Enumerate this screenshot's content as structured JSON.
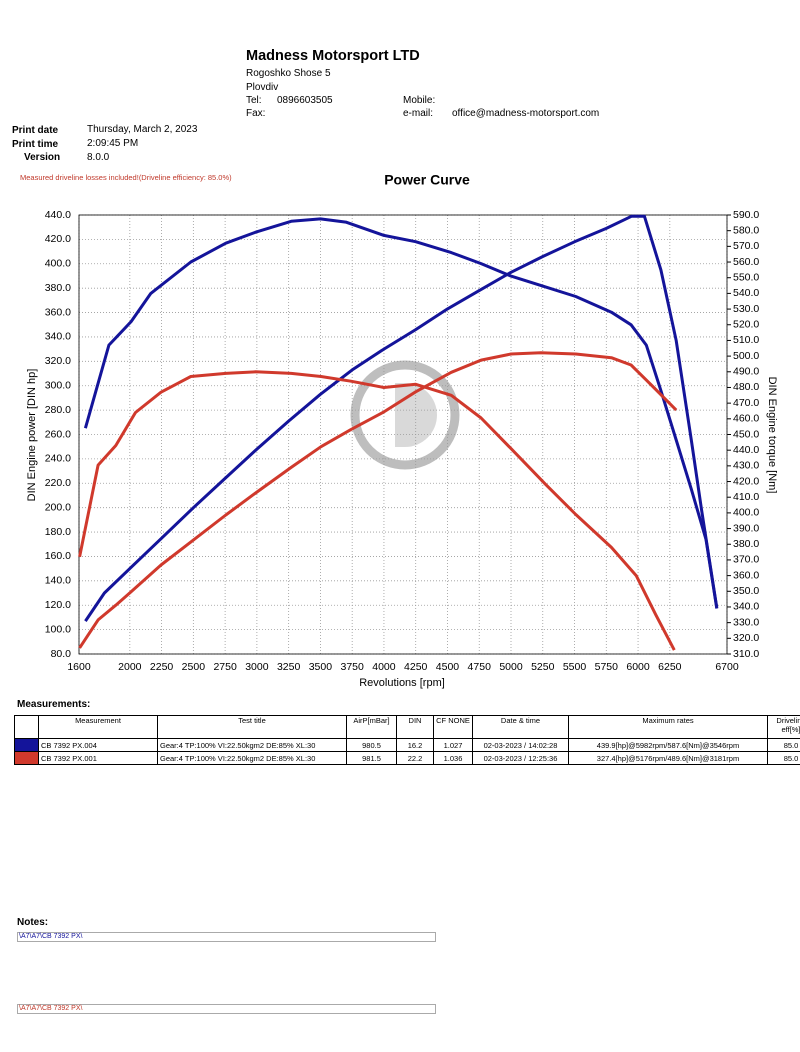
{
  "header": {
    "company": "Madness Motorsport LTD",
    "address": "Rogoshko Shose 5",
    "city": "Plovdiv",
    "tel_label": "Tel:",
    "tel": "0896603505",
    "mobile_label": "Mobile:",
    "fax_label": "Fax:",
    "email_label": "e-mail:",
    "email": "office@madness-motorsport.com"
  },
  "print_info": {
    "date_label": "Print date",
    "date": "Thursday, March 2, 2023",
    "time_label": "Print time",
    "time": "2:09:45 PM",
    "version_label": "Version",
    "version": "8.0.0"
  },
  "note": "Measured driveline losses included!(Driveline efficiency: 85.0%)",
  "chart_data": {
    "type": "line",
    "title": "Power Curve",
    "x_label": "Revolutions [rpm]",
    "y_label": "DIN Engine power [DIN hp]",
    "y2_label": "DIN Engine torque [Nm]",
    "grid": true,
    "xlim": [
      1600,
      6700
    ],
    "xticks": [
      1600,
      2000,
      2250,
      2500,
      2750,
      3000,
      3250,
      3500,
      3750,
      4000,
      4250,
      4500,
      4750,
      5000,
      5250,
      5500,
      5750,
      6000,
      6250,
      6700
    ],
    "ylim": [
      80,
      440
    ],
    "yticks": [
      {
        "value": 80,
        "label": "80.0"
      },
      {
        "value": 100,
        "label": "100.0"
      },
      {
        "value": 120,
        "label": "120.0"
      },
      {
        "value": 140,
        "label": "140.0"
      },
      {
        "value": 160,
        "label": "160.0"
      },
      {
        "value": 180,
        "label": "180.0"
      },
      {
        "value": 200,
        "label": "200.0"
      },
      {
        "value": 220,
        "label": "220.0"
      },
      {
        "value": 240,
        "label": "240.0"
      },
      {
        "value": 260,
        "label": "260.0"
      },
      {
        "value": 280,
        "label": "280.0"
      },
      {
        "value": 300,
        "label": "300.0"
      },
      {
        "value": 320,
        "label": "320.0"
      },
      {
        "value": 340,
        "label": "340.0"
      },
      {
        "value": 360,
        "label": "360.0"
      },
      {
        "value": 380,
        "label": "380.0"
      },
      {
        "value": 400,
        "label": "400.0"
      },
      {
        "value": 420,
        "label": "420.0"
      },
      {
        "value": 440,
        "label": "440.0"
      }
    ],
    "y2lim": [
      310,
      590
    ],
    "y2ticks": [
      {
        "value": 310,
        "label": "310.0"
      },
      {
        "value": 320,
        "label": "320.0"
      },
      {
        "value": 330,
        "label": "330.0"
      },
      {
        "value": 340,
        "label": "340.0"
      },
      {
        "value": 350,
        "label": "350.0"
      },
      {
        "value": 360,
        "label": "360.0"
      },
      {
        "value": 370,
        "label": "370.0"
      },
      {
        "value": 380,
        "label": "380.0"
      },
      {
        "value": 390,
        "label": "390.0"
      },
      {
        "value": 400,
        "label": "400.0"
      },
      {
        "value": 410,
        "label": "410.0"
      },
      {
        "value": 420,
        "label": "420.0"
      },
      {
        "value": 430,
        "label": "430.0"
      },
      {
        "value": 440,
        "label": "440.0"
      },
      {
        "value": 450,
        "label": "450.0"
      },
      {
        "value": 460,
        "label": "460.0"
      },
      {
        "value": 470,
        "label": "470.0"
      },
      {
        "value": 480,
        "label": "480.0"
      },
      {
        "value": 490,
        "label": "490.0"
      },
      {
        "value": 500,
        "label": "500.0"
      },
      {
        "value": 510,
        "label": "510.0"
      },
      {
        "value": 520,
        "label": "520.0"
      },
      {
        "value": 530,
        "label": "530.0"
      },
      {
        "value": 540,
        "label": "540.0"
      },
      {
        "value": 550,
        "label": "550.0"
      },
      {
        "value": 560,
        "label": "560.0"
      },
      {
        "value": 570,
        "label": "570.0"
      },
      {
        "value": 580,
        "label": "580.0"
      },
      {
        "value": 590,
        "label": "590.0"
      }
    ],
    "series": [
      {
        "color": "#14149a",
        "x": [
          1650,
          1800,
          2000,
          2250,
          2500,
          2750,
          3000,
          3250,
          3500,
          3750,
          4000,
          4250,
          4500,
          4750,
          5000,
          5250,
          5500,
          5750,
          5950,
          6050,
          6180,
          6300,
          6420,
          6500,
          6620
        ],
        "values": [
          107,
          130,
          150,
          175,
          200,
          224,
          248,
          271,
          293,
          313,
          330,
          346,
          363,
          378,
          393,
          406,
          418,
          429,
          439,
          439,
          395,
          337,
          255,
          198,
          118
        ]
      },
      {
        "axis": "y2",
        "color": "#14149a",
        "x": [
          1650,
          1835,
          2010,
          2165,
          2480,
          2755,
          2990,
          3270,
          3500,
          3700,
          4000,
          4250,
          4530,
          4765,
          5000,
          5275,
          5510,
          5790,
          5945,
          6065,
          6180,
          6300,
          6420,
          6535,
          6620
        ],
        "values": [
          454,
          507,
          522,
          540,
          560,
          572,
          579,
          586,
          587.5,
          585.5,
          577,
          573,
          566,
          559,
          551,
          544,
          538,
          528,
          520,
          507,
          478,
          446.5,
          415,
          383,
          339
        ]
      },
      {
        "color": "#d0392c",
        "x": [
          1605,
          1750,
          1890,
          2010,
          2245,
          2495,
          2755,
          2990,
          3270,
          3505,
          3740,
          4000,
          4250,
          4530,
          4765,
          5000,
          5235,
          5510,
          5790,
          5945,
          6100,
          6300
        ],
        "values": [
          85,
          108,
          120,
          131,
          153,
          173,
          194,
          212,
          233,
          250,
          264,
          278.5,
          295,
          311,
          321,
          326,
          327,
          326,
          323,
          317,
          301,
          280
        ]
      },
      {
        "axis": "y2",
        "color": "#d0392c",
        "x": [
          1605,
          1750,
          1890,
          2045,
          2245,
          2480,
          2755,
          2990,
          3270,
          3505,
          3740,
          4000,
          4250,
          4530,
          4765,
          5000,
          5275,
          5510,
          5790,
          5985,
          6140,
          6285
        ],
        "values": [
          372,
          430.5,
          443,
          464,
          477,
          487,
          489,
          490,
          489,
          487,
          484,
          480,
          482,
          475,
          460.5,
          441,
          418,
          399,
          378,
          360,
          335,
          312.5
        ]
      }
    ]
  },
  "measurements": {
    "title": "Measurements:",
    "columns": [
      "Measurement",
      "Test title",
      "AirP[mBar]",
      "DIN",
      "CF NONE",
      "Date & time",
      "Maximum rates",
      "Driveline eff[%]"
    ],
    "rows": [
      [
        "CB 7392 PX.004",
        "Gear:4 TP:100% VI:22.50kgm2 DE:85% XL:30",
        "980.5",
        "16.2",
        "1.027",
        "02-03-2023 / 14:02:28",
        "439.9[hp]@5982rpm/587.6[Nm]@3546rpm",
        "85.0"
      ],
      [
        "CB 7392 PX.001",
        "Gear:4 TP:100% VI:22.50kgm2 DE:85% XL:30",
        "981.5",
        "22.2",
        "1.036",
        "02-03-2023 / 12:25:36",
        "327.4[hp]@5176rpm/489.6[Nm]@3181rpm",
        "85.0"
      ]
    ]
  },
  "notes": {
    "title": "Notes:",
    "items": [
      "\\A7\\A7\\CB 7392 PX\\",
      "\\A7\\A7\\CB 7392 PX\\"
    ]
  }
}
